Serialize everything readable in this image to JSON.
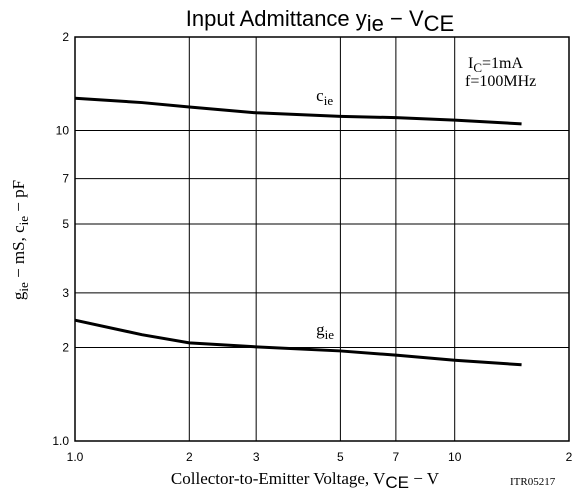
{
  "chart_data": {
    "type": "line",
    "title": [
      "Input Admittance  y",
      "ie",
      " − V",
      "CE"
    ],
    "x_label": [
      "Collector-to-Emitter Voltage, V",
      "CE",
      " − V"
    ],
    "y_label": [
      "g",
      "ie",
      " − mS, c",
      "ie",
      " − pF"
    ],
    "code": "ITR05217",
    "annotations": [
      [
        "I",
        "C",
        "=1mA"
      ],
      [
        "f=100MHz"
      ]
    ],
    "log_x": true,
    "log_y": true,
    "grid": true,
    "xlim": [
      1,
      20
    ],
    "ylim": [
      1,
      20
    ],
    "xticks": [
      {
        "value": 1,
        "label": "1.0"
      },
      2,
      3,
      5,
      7,
      10,
      {
        "value": 20,
        "label": "2"
      }
    ],
    "yticks": [
      {
        "value": 1,
        "label": "1.0"
      },
      2,
      3,
      5,
      7,
      10,
      {
        "value": 20,
        "label": "2"
      }
    ],
    "x": [
      1,
      1.5,
      2,
      3,
      5,
      7,
      10,
      15
    ],
    "series": [
      {
        "name": [
          "c",
          "ie"
        ],
        "color": "#000000",
        "values": [
          12.7,
          12.3,
          11.9,
          11.4,
          11.1,
          11.0,
          10.8,
          10.5
        ]
      },
      {
        "name": [
          "g",
          "ie"
        ],
        "color": "#000000",
        "values": [
          2.45,
          2.2,
          2.07,
          2.01,
          1.95,
          1.89,
          1.82,
          1.76
        ]
      }
    ]
  }
}
